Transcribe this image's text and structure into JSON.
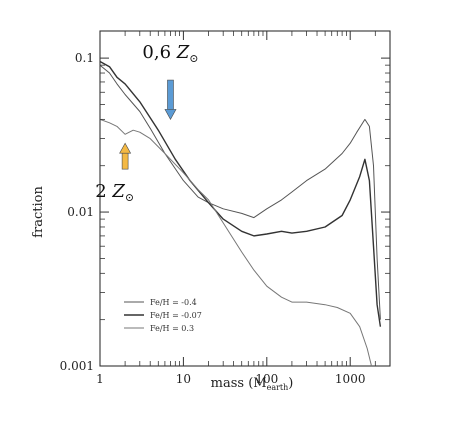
{
  "chart_data": {
    "type": "line",
    "title": "",
    "xlabel": "mass (M",
    "xlabel_sub": "earth",
    "xlabel_close": ")",
    "ylabel": "fraction",
    "x_scale": "log",
    "y_scale": "log",
    "xlim": [
      1,
      3000
    ],
    "ylim": [
      0.001,
      0.15
    ],
    "x_ticks": [
      {
        "value": 1,
        "label": "1"
      },
      {
        "value": 10,
        "label": "10"
      },
      {
        "value": 100,
        "label": "100"
      },
      {
        "value": 1000,
        "label": "1000"
      }
    ],
    "y_ticks": [
      {
        "value": 0.1,
        "label": "0.1"
      },
      {
        "value": 0.01,
        "label": "0.01"
      },
      {
        "value": 0.001,
        "label": "0.001"
      }
    ],
    "grid": false,
    "legend": {
      "position": "bottom-left",
      "entries": [
        {
          "label": "Fe/H = -0.4",
          "series": 0
        },
        {
          "label": "Fe/H = -0.07",
          "series": 1
        },
        {
          "label": "Fe/H = 0.3",
          "series": 2
        }
      ]
    },
    "series": [
      {
        "name": "Fe/H = -0.4",
        "color": "#555555",
        "width": 1,
        "points": [
          [
            1,
            0.09
          ],
          [
            1.3,
            0.08
          ],
          [
            1.6,
            0.068
          ],
          [
            2,
            0.058
          ],
          [
            3,
            0.045
          ],
          [
            4,
            0.035
          ],
          [
            6,
            0.024
          ],
          [
            10,
            0.016
          ],
          [
            15,
            0.0125
          ],
          [
            20,
            0.0115
          ],
          [
            30,
            0.0105
          ],
          [
            50,
            0.0098
          ],
          [
            70,
            0.0092
          ],
          [
            100,
            0.0105
          ],
          [
            150,
            0.012
          ],
          [
            200,
            0.0135
          ],
          [
            300,
            0.016
          ],
          [
            500,
            0.019
          ],
          [
            800,
            0.024
          ],
          [
            1000,
            0.028
          ],
          [
            1200,
            0.033
          ],
          [
            1500,
            0.04
          ],
          [
            1700,
            0.036
          ],
          [
            1900,
            0.02
          ],
          [
            2100,
            0.005
          ],
          [
            2300,
            0.002
          ]
        ]
      },
      {
        "name": "Fe/H = -0.07",
        "color": "#333333",
        "width": 1.4,
        "points": [
          [
            1,
            0.095
          ],
          [
            1.3,
            0.088
          ],
          [
            1.6,
            0.075
          ],
          [
            2,
            0.068
          ],
          [
            3,
            0.052
          ],
          [
            5,
            0.034
          ],
          [
            8,
            0.022
          ],
          [
            12,
            0.016
          ],
          [
            20,
            0.0115
          ],
          [
            30,
            0.009
          ],
          [
            50,
            0.0075
          ],
          [
            70,
            0.007
          ],
          [
            100,
            0.0072
          ],
          [
            150,
            0.0075
          ],
          [
            200,
            0.0073
          ],
          [
            300,
            0.0075
          ],
          [
            500,
            0.008
          ],
          [
            800,
            0.0095
          ],
          [
            1000,
            0.012
          ],
          [
            1300,
            0.017
          ],
          [
            1500,
            0.022
          ],
          [
            1700,
            0.016
          ],
          [
            1900,
            0.006
          ],
          [
            2100,
            0.0025
          ],
          [
            2300,
            0.0018
          ]
        ]
      },
      {
        "name": "Fe/H = 0.3",
        "color": "#777777",
        "width": 1,
        "points": [
          [
            1,
            0.04
          ],
          [
            1.3,
            0.038
          ],
          [
            1.6,
            0.036
          ],
          [
            2,
            0.032
          ],
          [
            2.5,
            0.034
          ],
          [
            3,
            0.033
          ],
          [
            4,
            0.03
          ],
          [
            6,
            0.024
          ],
          [
            10,
            0.018
          ],
          [
            15,
            0.014
          ],
          [
            20,
            0.012
          ],
          [
            30,
            0.0085
          ],
          [
            50,
            0.0055
          ],
          [
            70,
            0.0042
          ],
          [
            100,
            0.0033
          ],
          [
            150,
            0.0028
          ],
          [
            200,
            0.0026
          ],
          [
            300,
            0.0026
          ],
          [
            500,
            0.0025
          ],
          [
            700,
            0.0024
          ],
          [
            1000,
            0.0022
          ],
          [
            1300,
            0.0018
          ],
          [
            1600,
            0.0013
          ],
          [
            1800,
            0.001
          ]
        ]
      }
    ],
    "annotations": [
      {
        "text_value": "0,6",
        "symbol": "Z",
        "color": "#5b9bd5",
        "direction": "down",
        "x": 7,
        "y_start": 0.072,
        "y_end": 0.04,
        "label_x": 7,
        "label_y": 0.1
      },
      {
        "text_value": "2",
        "symbol": "Z",
        "color": "#f4b944",
        "direction": "up",
        "x": 2,
        "y_start": 0.019,
        "y_end": 0.028,
        "label_x": 1.5,
        "label_y": 0.0125
      }
    ]
  }
}
